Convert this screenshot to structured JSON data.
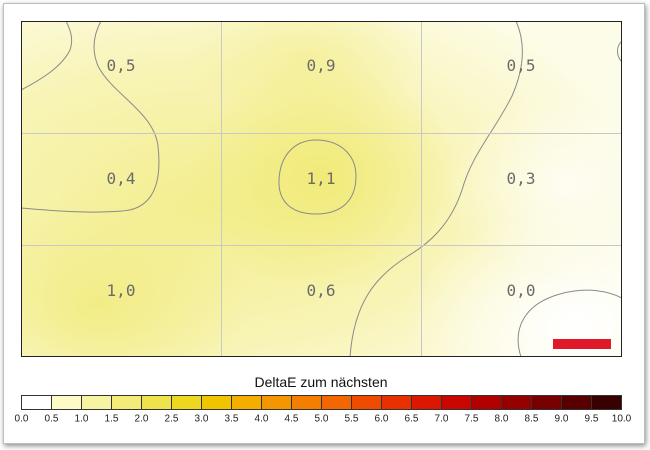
{
  "chart_data": {
    "type": "heatmap",
    "rows": 3,
    "cols": 3,
    "values": [
      [
        0.5,
        0.9,
        0.5
      ],
      [
        0.4,
        1.1,
        0.3
      ],
      [
        1.0,
        0.6,
        0.0
      ]
    ],
    "labels": [
      [
        "0,5",
        "0,9",
        "0,5"
      ],
      [
        "0,4",
        "1,1",
        "0,3"
      ],
      [
        "1,0",
        "0,6",
        "0,0"
      ]
    ],
    "legend": {
      "title": "DeltaE zum nächsten",
      "ticks": [
        "0.0",
        "0.5",
        "1.0",
        "1.5",
        "2.0",
        "2.5",
        "3.0",
        "3.5",
        "4.0",
        "4.5",
        "5.0",
        "5.5",
        "6.0",
        "6.5",
        "7.0",
        "7.5",
        "8.0",
        "8.5",
        "9.0",
        "9.5",
        "10.0"
      ],
      "colors": [
        "#ffffff",
        "#fcfbc8",
        "#f7f3a2",
        "#f3ec79",
        "#efe34d",
        "#edd720",
        "#f0c400",
        "#f3ae00",
        "#f49600",
        "#f47e00",
        "#f36600",
        "#ef4c00",
        "#e83000",
        "#dc1700",
        "#c90700",
        "#b20000",
        "#950000",
        "#780000",
        "#580000",
        "#380000"
      ]
    },
    "marker_color": "#e0192a",
    "grid": true
  }
}
